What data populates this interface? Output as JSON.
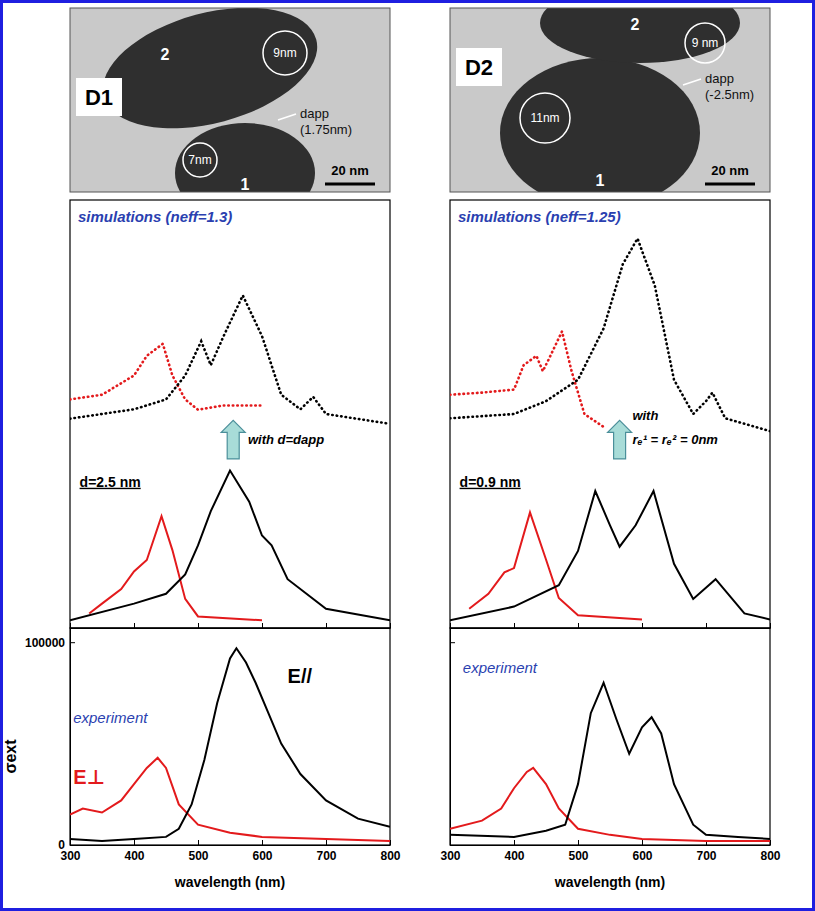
{
  "tem_images": [
    {
      "label": "D1",
      "particles": [
        "1",
        "2"
      ],
      "circles": [
        "9nm",
        "7nm"
      ],
      "gap": [
        "dapp",
        "(1.75nm)"
      ],
      "scale_bar": "20 nm"
    },
    {
      "label": "D2",
      "particles": [
        "1",
        "2"
      ],
      "circles": [
        "11nm",
        "9 nm"
      ],
      "gap": [
        "dapp",
        "(-2.5nm)"
      ],
      "scale_bar": "20 nm"
    }
  ],
  "chart_data": [
    {
      "type": "line",
      "title": "simulations (neff=1.3)",
      "annotations": [
        "with d=dapp",
        "d=2.5 nm"
      ],
      "xlim": [
        300,
        800
      ],
      "ylim": [
        0,
        10
      ],
      "xticks": [
        300,
        400,
        500,
        600,
        700,
        800
      ],
      "tick_labels": false,
      "series": [
        {
          "color": "#e31a1c",
          "line_style": "dotted",
          "x": [
            300,
            350,
            400,
            420,
            445,
            460,
            480,
            500,
            540,
            600
          ],
          "values": [
            5.34,
            5.45,
            5.9,
            6.36,
            6.64,
            5.9,
            5.34,
            5.1,
            5.2,
            5.2
          ]
        },
        {
          "color": "#000000",
          "line_style": "dotted",
          "x": [
            300,
            400,
            450,
            480,
            505,
            520,
            540,
            570,
            600,
            630,
            660,
            680,
            700,
            800
          ],
          "values": [
            4.89,
            5.11,
            5.34,
            5.9,
            6.7,
            6.14,
            6.82,
            7.77,
            6.82,
            5.45,
            5.11,
            5.4,
            5.0,
            4.77
          ]
        },
        {
          "color": "#e31a1c",
          "line_style": "solid",
          "x": [
            330,
            350,
            380,
            400,
            420,
            443,
            460,
            480,
            500,
            600
          ],
          "values": [
            0.34,
            0.57,
            0.91,
            1.32,
            1.59,
            2.61,
            1.82,
            0.68,
            0.27,
            0.18
          ]
        },
        {
          "color": "#000000",
          "line_style": "solid",
          "x": [
            300,
            400,
            450,
            480,
            500,
            520,
            550,
            580,
            600,
            615,
            640,
            700,
            800
          ],
          "values": [
            0.18,
            0.57,
            0.8,
            1.25,
            1.93,
            2.73,
            3.68,
            2.95,
            2.16,
            1.93,
            1.14,
            0.45,
            0.18
          ]
        }
      ]
    },
    {
      "type": "line",
      "title": "experiment",
      "xlabel": "wavelength (nm)",
      "ylabel": "σext",
      "xlim": [
        300,
        800
      ],
      "ylim": [
        0,
        107000
      ],
      "xticks": [
        300,
        400,
        500,
        600,
        700,
        800
      ],
      "yticks": [
        0,
        100000
      ],
      "series": [
        {
          "name": "E⊥",
          "color": "#e31a1c",
          "line_style": "solid",
          "x": [
            300,
            320,
            350,
            380,
            400,
            420,
            437,
            450,
            470,
            500,
            550,
            600,
            700,
            800
          ],
          "values": [
            15000,
            18000,
            16000,
            22000,
            30000,
            38000,
            43000,
            38000,
            20000,
            10000,
            6000,
            4000,
            3000,
            2000
          ]
        },
        {
          "name": "E//",
          "color": "#000000",
          "line_style": "solid",
          "x": [
            300,
            350,
            400,
            450,
            470,
            490,
            510,
            530,
            550,
            560,
            575,
            590,
            610,
            630,
            660,
            700,
            750,
            800
          ],
          "values": [
            3000,
            2000,
            3000,
            4000,
            8000,
            20000,
            42000,
            70000,
            92000,
            97000,
            90000,
            80000,
            65000,
            50000,
            35000,
            22000,
            13000,
            9000
          ]
        }
      ]
    },
    {
      "type": "line",
      "title": "simulations (neff=1.25)",
      "annotations": [
        "with",
        "rₑ¹ = rₑ² = 0nm",
        "d=0.9 nm"
      ],
      "xlim": [
        300,
        800
      ],
      "ylim": [
        0,
        10
      ],
      "xticks": [
        300,
        400,
        500,
        600,
        700,
        800
      ],
      "tick_labels": false,
      "series": [
        {
          "color": "#e31a1c",
          "line_style": "dotted",
          "x": [
            300,
            350,
            400,
            415,
            435,
            445,
            455,
            475,
            490,
            510,
            540
          ],
          "values": [
            5.45,
            5.5,
            5.57,
            6.14,
            6.36,
            6.0,
            6.3,
            6.93,
            6.0,
            5.0,
            4.7
          ]
        },
        {
          "color": "#000000",
          "line_style": "dotted",
          "x": [
            300,
            400,
            450,
            500,
            540,
            570,
            593,
            620,
            650,
            680,
            700,
            710,
            730,
            800
          ],
          "values": [
            4.9,
            5.0,
            5.3,
            5.8,
            7.0,
            8.5,
            9.1,
            8.0,
            5.8,
            5.0,
            5.3,
            5.5,
            4.9,
            4.6
          ]
        },
        {
          "color": "#e31a1c",
          "line_style": "solid",
          "x": [
            330,
            360,
            385,
            400,
            425,
            450,
            470,
            500,
            600
          ],
          "values": [
            0.45,
            0.8,
            1.3,
            1.4,
            2.7,
            1.6,
            0.7,
            0.3,
            0.2
          ]
        },
        {
          "color": "#000000",
          "line_style": "solid",
          "x": [
            300,
            400,
            470,
            500,
            527,
            550,
            565,
            590,
            618,
            650,
            680,
            715,
            760,
            800
          ],
          "values": [
            0.18,
            0.5,
            1.0,
            1.8,
            3.2,
            2.4,
            1.9,
            2.4,
            3.2,
            1.5,
            0.68,
            1.14,
            0.34,
            0.2
          ]
        }
      ]
    },
    {
      "type": "line",
      "title": "experiment",
      "xlabel": "wavelength (nm)",
      "xlim": [
        300,
        800
      ],
      "ylim": [
        0,
        107000
      ],
      "xticks": [
        300,
        400,
        500,
        600,
        700,
        800
      ],
      "yticks": [
        0,
        100000
      ],
      "tick_labels": "x",
      "series": [
        {
          "color": "#e31a1c",
          "line_style": "solid",
          "x": [
            300,
            350,
            380,
            400,
            420,
            430,
            450,
            470,
            500,
            550,
            600,
            700,
            800
          ],
          "values": [
            8000,
            12000,
            18000,
            28000,
            36000,
            38000,
            30000,
            18000,
            8000,
            5000,
            3000,
            2000,
            2000
          ]
        },
        {
          "color": "#000000",
          "line_style": "solid",
          "x": [
            300,
            400,
            450,
            480,
            500,
            520,
            540,
            560,
            580,
            600,
            615,
            630,
            650,
            680,
            700,
            750,
            800
          ],
          "values": [
            5000,
            4000,
            7000,
            10000,
            30000,
            65000,
            80000,
            62000,
            45000,
            58000,
            63000,
            55000,
            30000,
            10000,
            5000,
            4000,
            3000
          ]
        }
      ]
    }
  ]
}
